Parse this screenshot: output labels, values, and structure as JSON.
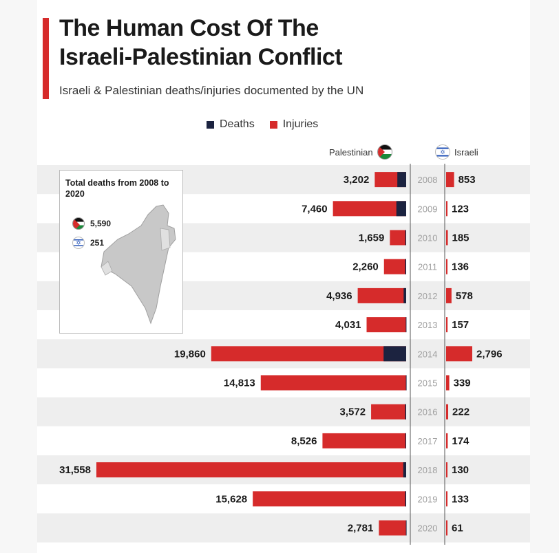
{
  "title_line1": "The Human Cost Of The",
  "title_line2": "Israeli-Palestinian Conflict",
  "subtitle": "Israeli & Palestinian deaths/injuries documented by the UN",
  "legend": {
    "deaths": "Deaths",
    "injuries": "Injuries"
  },
  "side_labels": {
    "palestinian": "Palestinian",
    "israeli": "Israeli"
  },
  "inset": {
    "title": "Total deaths from 2008 to 2020",
    "palestinian_total": "5,590",
    "israeli_total": "251"
  },
  "colors": {
    "deaths": "#1c2340",
    "injuries": "#d62b2b",
    "band": "#eeeeee"
  },
  "icons": [
    "palestinian-flag-icon",
    "israeli-flag-icon",
    "israel-map-icon"
  ],
  "chart_data": {
    "type": "bar",
    "categories": [
      "2008",
      "2009",
      "2010",
      "2011",
      "2012",
      "2013",
      "2014",
      "2015",
      "2016",
      "2017",
      "2018",
      "2019",
      "2020"
    ],
    "series": [
      {
        "name": "Palestinian",
        "values": [
          3202,
          7460,
          1659,
          2260,
          4936,
          4031,
          19860,
          14813,
          3572,
          8526,
          31558,
          15628,
          2781
        ],
        "labels": [
          "3,202",
          "7,460",
          "1,659",
          "2,260",
          "4,936",
          "4,031",
          "19,860",
          "14,813",
          "3,572",
          "8,526",
          "31,558",
          "15,628",
          "2,781"
        ]
      },
      {
        "name": "Israeli",
        "values": [
          853,
          123,
          185,
          136,
          578,
          157,
          2796,
          339,
          222,
          174,
          130,
          133,
          61
        ],
        "labels": [
          "853",
          "123",
          "185",
          "136",
          "578",
          "157",
          "2,796",
          "339",
          "222",
          "174",
          "130",
          "133",
          "61"
        ]
      }
    ],
    "palestinian_deaths_est": [
      900,
      1000,
      90,
      110,
      260,
      40,
      2300,
      30,
      110,
      80,
      300,
      110,
      30
    ],
    "legend_position": "top-center",
    "grid": false
  }
}
